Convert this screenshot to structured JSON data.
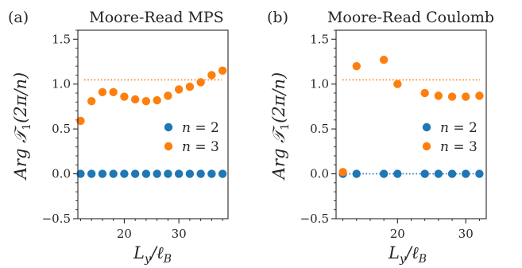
{
  "chart_data": [
    {
      "type": "scatter",
      "panel_label": "(a)",
      "title": "Moore-Read MPS",
      "xlabel": "L_y/ℓ_B",
      "ylabel": "Arg T₁(2π/n)",
      "xlim": [
        11.5,
        39
      ],
      "ylim": [
        -0.5,
        1.6
      ],
      "xticks": [
        20,
        30
      ],
      "xtick_labels": [
        "20",
        "30"
      ],
      "yticks": [
        -0.5,
        0.0,
        0.5,
        1.0,
        1.5
      ],
      "ytick_labels": [
        "−0.5",
        "0.0",
        "0.5",
        "1.0",
        "1.5"
      ],
      "grid": false,
      "legend_position": "center-right",
      "reference_lines": [
        {
          "y": 1.047,
          "color": "#ff7f0e",
          "style": "dotted"
        }
      ],
      "series": [
        {
          "name": "n = 2",
          "color": "#1f77b4",
          "x": [
            12,
            14,
            16,
            18,
            20,
            22,
            24,
            26,
            28,
            30,
            32,
            34,
            36,
            38
          ],
          "y": [
            0.0,
            0.0,
            0.0,
            0.0,
            0.0,
            0.0,
            0.0,
            0.0,
            0.0,
            0.0,
            0.0,
            0.0,
            0.0,
            0.0
          ]
        },
        {
          "name": "n = 3",
          "color": "#ff7f0e",
          "x": [
            12,
            14,
            16,
            18,
            20,
            22,
            24,
            26,
            28,
            30,
            32,
            34,
            36,
            38
          ],
          "y": [
            0.59,
            0.81,
            0.91,
            0.91,
            0.86,
            0.83,
            0.81,
            0.82,
            0.87,
            0.94,
            0.97,
            1.02,
            1.1,
            1.15
          ]
        }
      ]
    },
    {
      "type": "scatter",
      "panel_label": "(b)",
      "title": "Moore-Read Coulomb",
      "xlabel": "L_y/ℓ_B",
      "ylabel": "Arg T₁(2π/n)",
      "xlim": [
        11,
        33
      ],
      "ylim": [
        -0.5,
        1.6
      ],
      "xticks": [
        20,
        30
      ],
      "xtick_labels": [
        "20",
        "30"
      ],
      "yticks": [
        -0.5,
        0.0,
        0.5,
        1.0,
        1.5
      ],
      "ytick_labels": [
        "−0.5",
        "0.0",
        "0.5",
        "1.0",
        "1.5"
      ],
      "grid": false,
      "legend_position": "center-right",
      "reference_lines": [
        {
          "y": 1.047,
          "color": "#ff7f0e",
          "style": "dotted"
        },
        {
          "y": 0.0,
          "color": "#1f77b4",
          "style": "dotted"
        }
      ],
      "series": [
        {
          "name": "n = 2",
          "color": "#1f77b4",
          "x": [
            12,
            14,
            18,
            20,
            24,
            26,
            28,
            30,
            32
          ],
          "y": [
            0.0,
            0.0,
            0.0,
            0.0,
            0.0,
            0.0,
            0.0,
            0.0,
            0.0
          ]
        },
        {
          "name": "n = 3",
          "color": "#ff7f0e",
          "x": [
            12,
            14,
            18,
            20,
            24,
            26,
            28,
            30,
            32
          ],
          "y": [
            0.02,
            1.2,
            1.27,
            1.0,
            0.9,
            0.87,
            0.86,
            0.86,
            0.87
          ]
        }
      ]
    }
  ]
}
